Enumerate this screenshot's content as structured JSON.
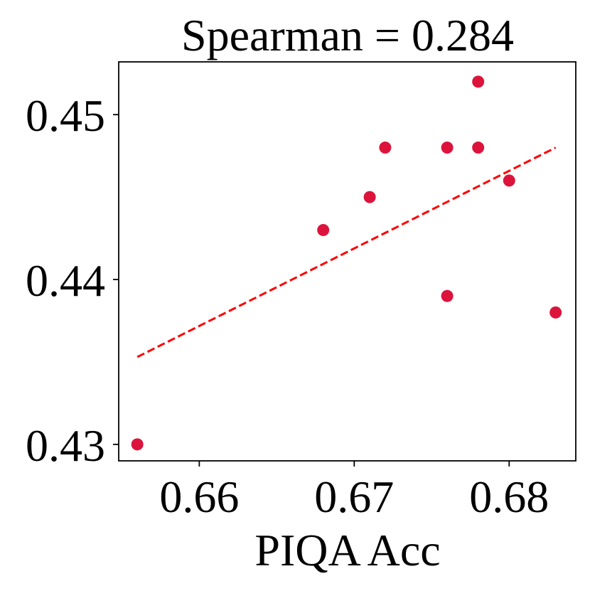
{
  "chart_data": {
    "type": "scatter",
    "title": "Spearman = 0.284",
    "xlabel": "PIQA Acc",
    "ylabel": "",
    "xlim": [
      0.6548,
      0.6843
    ],
    "ylim": [
      0.429,
      0.4532
    ],
    "xticks": [
      0.66,
      0.67,
      0.68
    ],
    "xtick_labels": [
      "0.66",
      "0.67",
      "0.68"
    ],
    "yticks": [
      0.43,
      0.44,
      0.45
    ],
    "ytick_labels": [
      "0.43",
      "0.44",
      "0.45"
    ],
    "grid": false,
    "legend": "none",
    "series": [
      {
        "type": "scatter",
        "color": "#dc143c",
        "points": [
          {
            "x": 0.656,
            "y": 0.43
          },
          {
            "x": 0.668,
            "y": 0.443
          },
          {
            "x": 0.671,
            "y": 0.445
          },
          {
            "x": 0.672,
            "y": 0.448
          },
          {
            "x": 0.676,
            "y": 0.448
          },
          {
            "x": 0.676,
            "y": 0.439
          },
          {
            "x": 0.678,
            "y": 0.452
          },
          {
            "x": 0.678,
            "y": 0.448
          },
          {
            "x": 0.68,
            "y": 0.446
          },
          {
            "x": 0.683,
            "y": 0.438
          }
        ]
      },
      {
        "type": "line",
        "style": "dashed",
        "color": "#ff0000",
        "points": [
          {
            "x": 0.656,
            "y": 0.4353
          },
          {
            "x": 0.683,
            "y": 0.448
          }
        ]
      }
    ]
  }
}
